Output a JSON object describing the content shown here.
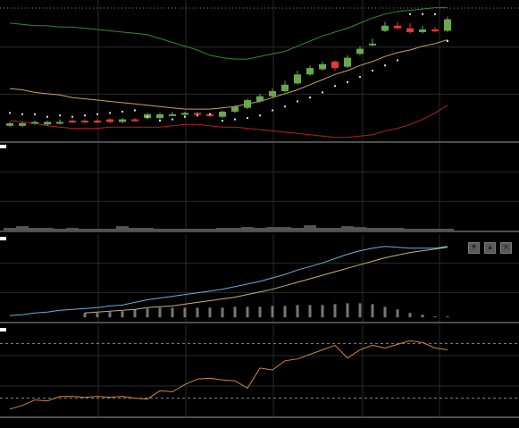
{
  "colors": {
    "background": "#000000",
    "grid": "#2a2a2a",
    "pane_border": "#9a9a9a",
    "up_candle": "#6aa84f",
    "down_candle": "#e53935",
    "upper_band": "#2e8b2e",
    "middle_band": "#c8a060",
    "lower_band": "#b22222",
    "sar_dots": "#dddddd",
    "volume_bar": "#555555",
    "macd_hist": "#777777",
    "macd_line": "#5fb3d9",
    "signal_line": "#c8b070",
    "oscillator_line": "#d0843a",
    "level_line": "#888888"
  },
  "toolbar": {
    "icons": [
      "collapse-icon",
      "expand-icon",
      "close-icon"
    ]
  },
  "chart_data": [
    {
      "type": "candlestick",
      "pane": "price",
      "x": [
        0,
        1,
        2,
        3,
        4,
        5,
        6,
        7,
        8,
        9,
        10,
        11,
        12,
        13,
        14,
        15,
        16,
        17,
        18,
        19,
        20,
        21,
        22,
        23,
        24,
        25,
        26,
        27,
        28,
        29,
        30,
        31,
        32,
        33,
        34,
        35
      ],
      "open": [
        12,
        12,
        14,
        13,
        14,
        16,
        16,
        16,
        17,
        15,
        17,
        18,
        18,
        21,
        21,
        22,
        21,
        19,
        23,
        26,
        31,
        35,
        39,
        45,
        52,
        56,
        62,
        58,
        68,
        75,
        86,
        90,
        88,
        85,
        87,
        86
      ],
      "close": [
        14,
        14,
        15,
        15,
        15,
        15,
        15,
        15,
        15,
        17,
        16,
        21,
        21,
        21,
        22,
        21,
        20,
        23,
        27,
        32,
        35,
        39,
        44,
        52,
        57,
        60,
        57,
        65,
        72,
        76,
        90,
        88,
        85,
        87,
        86,
        95
      ],
      "high": [
        15,
        15,
        16,
        16,
        17,
        17,
        17,
        17,
        18,
        18,
        18,
        22,
        22,
        23,
        23,
        23,
        22,
        24,
        28,
        33,
        37,
        41,
        47,
        55,
        59,
        62,
        63,
        67,
        74,
        80,
        93,
        93,
        92,
        90,
        89,
        97
      ],
      "low": [
        11,
        11,
        13,
        12,
        13,
        14,
        14,
        14,
        14,
        14,
        15,
        17,
        17,
        20,
        20,
        20,
        19,
        18,
        22,
        25,
        30,
        34,
        38,
        44,
        51,
        55,
        55,
        57,
        67,
        74,
        85,
        87,
        84,
        84,
        85,
        85
      ],
      "upper_band": [
        92,
        91,
        90,
        90,
        89,
        89,
        88,
        87,
        86,
        85,
        84,
        83,
        80,
        77,
        74,
        71,
        67,
        65,
        64,
        64,
        66,
        68,
        70,
        74,
        78,
        82,
        85,
        88,
        92,
        96,
        99,
        101,
        102,
        103,
        104,
        104
      ],
      "middle_band": [
        41,
        40,
        38,
        37,
        36,
        34,
        33,
        32,
        31,
        30,
        29,
        28,
        27,
        26,
        25,
        25,
        25,
        26,
        27,
        29,
        31,
        34,
        37,
        40,
        44,
        48,
        52,
        55,
        59,
        62,
        66,
        69,
        71,
        74,
        76,
        79
      ],
      "lower_band": [
        16,
        15,
        14,
        12,
        11,
        10,
        10,
        10,
        11,
        11,
        11,
        11,
        11,
        12,
        13,
        13,
        12,
        11,
        11,
        10,
        9,
        8,
        7,
        6,
        5,
        4,
        3,
        3,
        4,
        5,
        8,
        10,
        13,
        17,
        22,
        28
      ],
      "sar": [
        22,
        21,
        21,
        19,
        20,
        19,
        20,
        21,
        22,
        23,
        24,
        19,
        16,
        17,
        19,
        20,
        21,
        16,
        17,
        18,
        20,
        24,
        27,
        31,
        34,
        38,
        43,
        46,
        50,
        55,
        59,
        63,
        99,
        99,
        99,
        78
      ],
      "ylim": [
        0,
        110
      ]
    },
    {
      "type": "bar",
      "pane": "volume",
      "x": [
        0,
        1,
        2,
        3,
        4,
        5,
        6,
        7,
        8,
        9,
        10,
        11,
        12,
        13,
        14,
        15,
        16,
        17,
        18,
        19,
        20,
        21,
        22,
        23,
        24,
        25,
        26,
        27,
        28,
        29,
        30,
        31,
        32,
        33,
        34,
        35
      ],
      "values": [
        3,
        5,
        3,
        3,
        2,
        3,
        2,
        2,
        2,
        5,
        3,
        3,
        2,
        2,
        2,
        2,
        2,
        3,
        3,
        4,
        3,
        4,
        4,
        3,
        6,
        3,
        3,
        5,
        4,
        3,
        3,
        3,
        2,
        2,
        2,
        2
      ],
      "ylim": [
        0,
        100
      ]
    },
    {
      "type": "line",
      "pane": "macd",
      "x": [
        0,
        1,
        2,
        3,
        4,
        5,
        6,
        7,
        8,
        9,
        10,
        11,
        12,
        13,
        14,
        15,
        16,
        17,
        18,
        19,
        20,
        21,
        22,
        23,
        24,
        25,
        26,
        27,
        28,
        29,
        30,
        31,
        32,
        33,
        34,
        35
      ],
      "series": [
        {
          "role": "macd",
          "values": [
            2,
            3,
            5,
            6,
            8,
            9,
            10,
            11,
            13,
            14,
            17,
            20,
            22,
            24,
            26,
            28,
            30,
            32,
            35,
            38,
            41,
            45,
            49,
            54,
            58,
            62,
            67,
            72,
            76,
            79,
            81,
            80,
            79,
            79,
            79,
            81
          ]
        },
        {
          "role": "signal",
          "values": [
            null,
            null,
            null,
            null,
            null,
            null,
            5,
            6,
            7,
            8,
            9,
            11,
            12,
            13,
            15,
            17,
            19,
            21,
            23,
            26,
            29,
            32,
            36,
            40,
            44,
            48,
            52,
            56,
            60,
            64,
            68,
            71,
            74,
            76,
            78,
            80
          ]
        }
      ],
      "histogram": [
        null,
        null,
        null,
        null,
        null,
        null,
        5,
        5,
        6,
        7,
        9,
        10,
        11,
        11,
        11,
        11,
        11,
        11,
        12,
        12,
        12,
        13,
        13,
        14,
        14,
        14,
        15,
        16,
        16,
        15,
        12,
        9,
        5,
        3,
        1,
        1
      ],
      "ylim": [
        -5,
        95
      ]
    },
    {
      "type": "line",
      "pane": "oscillator",
      "x": [
        0,
        1,
        2,
        3,
        4,
        5,
        6,
        7,
        8,
        9,
        10,
        11,
        12,
        13,
        14,
        15,
        16,
        17,
        18,
        19,
        20,
        21,
        22,
        23,
        24,
        25,
        26,
        27,
        28,
        29,
        30,
        31,
        32,
        33,
        34,
        35
      ],
      "series": [
        {
          "role": "oscillator",
          "values": [
            8,
            12,
            18,
            17,
            22,
            22,
            21,
            22,
            21,
            22,
            20,
            19,
            28,
            27,
            35,
            41,
            42,
            40,
            39,
            31,
            53,
            51,
            61,
            63,
            68,
            73,
            78,
            64,
            73,
            78,
            75,
            79,
            83,
            81,
            75,
            73
          ]
        }
      ],
      "levels": [
        80,
        20
      ],
      "ylim": [
        0,
        100
      ]
    }
  ]
}
